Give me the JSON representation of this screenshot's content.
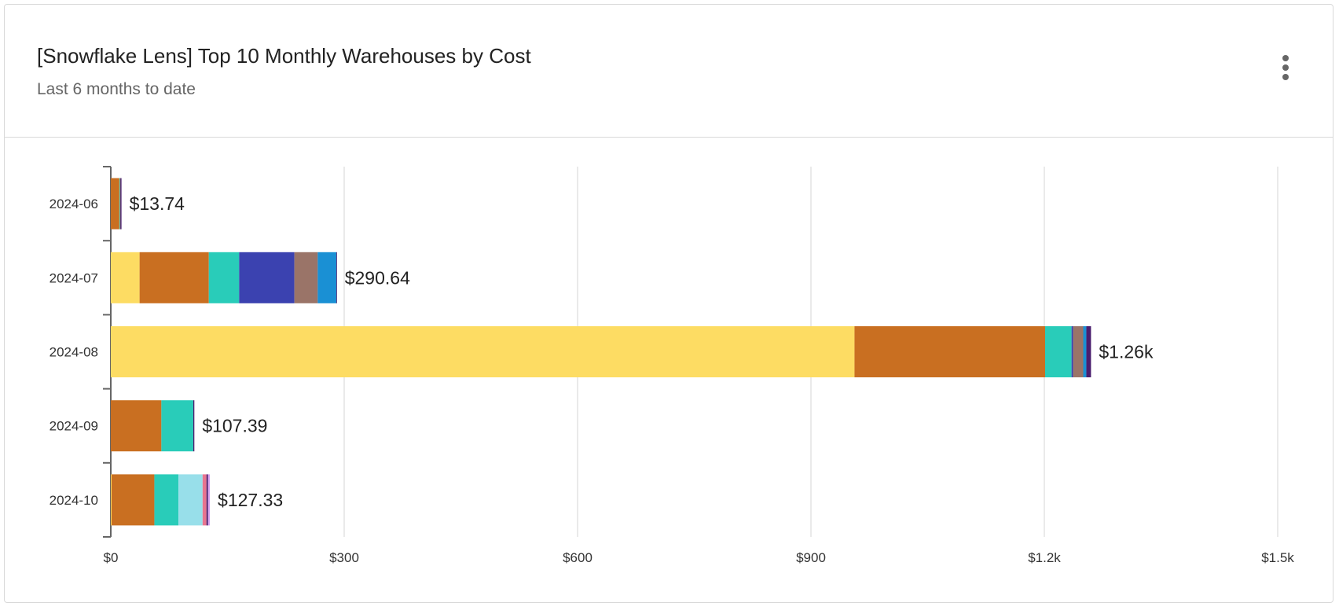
{
  "header": {
    "title": "[Snowflake Lens] Top 10 Monthly Warehouses by Cost",
    "subtitle": "Last 6 months to date",
    "menu_icon": "more-vertical-icon"
  },
  "chart_data": {
    "type": "bar",
    "orientation": "horizontal",
    "stacked": true,
    "title": "[Snowflake Lens] Top 10 Monthly Warehouses by Cost",
    "subtitle": "Last 6 months to date",
    "categories": [
      "2024-06",
      "2024-07",
      "2024-08",
      "2024-09",
      "2024-10"
    ],
    "totals": [
      13.74,
      290.64,
      1260,
      107.39,
      127.33
    ],
    "total_labels": [
      "$13.74",
      "$290.64",
      "$1.26k",
      "$107.39",
      "$127.33"
    ],
    "xlim": [
      0,
      1500
    ],
    "x_ticks": [
      0,
      300,
      600,
      900,
      1200,
      1500
    ],
    "x_tick_labels": [
      "$0",
      "$300",
      "$600",
      "$900",
      "$1.2k",
      "$1.5k"
    ],
    "grid": true,
    "colors": [
      "#FDDC63",
      "#C96F21",
      "#29CCB9",
      "#3B42B0",
      "#9A7468",
      "#1A90D4",
      "#98DFEA",
      "#E8758F",
      "#4A1D6E",
      "#D6A3F0"
    ],
    "series": [
      {
        "values": [
          0,
          37,
          956,
          0,
          1
        ]
      },
      {
        "values": [
          11,
          89,
          245,
          65,
          55
        ]
      },
      {
        "values": [
          0.8,
          39,
          34,
          41,
          31
        ]
      },
      {
        "values": [
          0,
          71,
          2,
          0,
          0
        ]
      },
      {
        "values": [
          0.6,
          30,
          13,
          0,
          0
        ]
      },
      {
        "values": [
          0,
          24,
          4,
          0,
          0
        ]
      },
      {
        "values": [
          0,
          0,
          0,
          0,
          31
        ]
      },
      {
        "values": [
          0,
          0,
          0,
          0,
          5
        ]
      },
      {
        "values": [
          1.34,
          0.64,
          6,
          1.39,
          2
        ]
      },
      {
        "values": [
          0,
          0,
          0,
          0,
          2.33
        ]
      }
    ]
  }
}
